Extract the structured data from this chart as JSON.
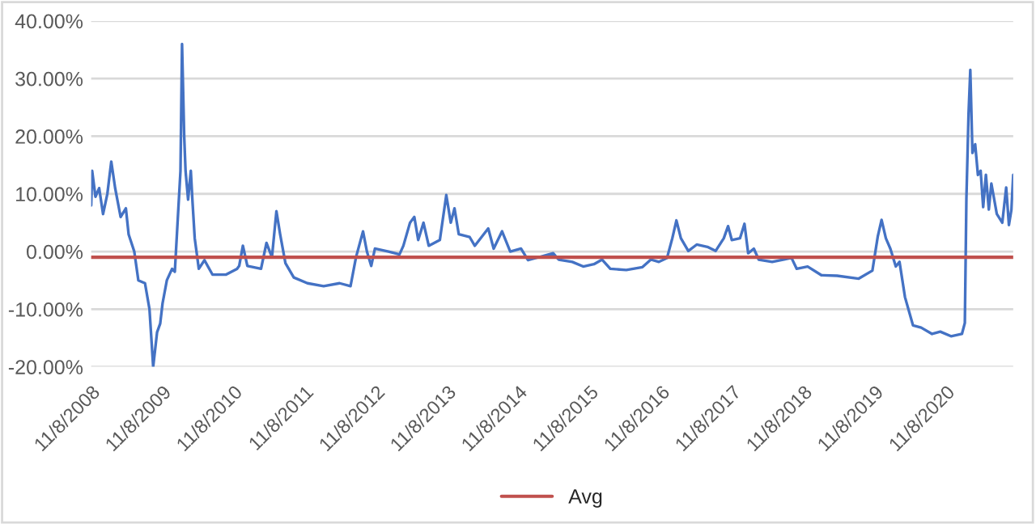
{
  "chart_data": {
    "type": "line",
    "x": [
      "2008-11-08",
      "2008-11-13",
      "2008-11-30",
      "2008-12-19",
      "2009-01-08",
      "2009-01-30",
      "2009-02-19",
      "2009-03-11",
      "2009-04-08",
      "2009-05-05",
      "2009-05-19",
      "2009-06-17",
      "2009-07-08",
      "2009-08-11",
      "2009-09-03",
      "2009-09-22",
      "2009-10-12",
      "2009-10-28",
      "2009-11-09",
      "2009-12-01",
      "2009-12-28",
      "2010-01-11",
      "2010-01-25",
      "2010-02-09",
      "2010-02-17",
      "2010-02-28",
      "2010-03-07",
      "2010-03-20",
      "2010-04-03",
      "2010-04-11",
      "2010-04-23",
      "2010-05-14",
      "2010-06-12",
      "2010-07-23",
      "2010-10-01",
      "2010-11-26",
      "2010-12-07",
      "2010-12-26",
      "2011-01-18",
      "2011-03-29",
      "2011-04-26",
      "2011-05-24",
      "2011-06-16",
      "2011-07-05",
      "2011-08-01",
      "2011-09-13",
      "2011-11-22",
      "2012-02-13",
      "2012-05-05",
      "2012-06-30",
      "2012-07-28",
      "2012-09-02",
      "2012-09-22",
      "2012-10-14",
      "2012-11-02",
      "2013-01-11",
      "2013-03-08",
      "2013-03-28",
      "2013-05-01",
      "2013-05-23",
      "2013-06-12",
      "2013-07-09",
      "2013-08-05",
      "2013-10-01",
      "2013-11-03",
      "2013-11-26",
      "2013-12-15",
      "2014-01-06",
      "2014-03-03",
      "2014-03-29",
      "2014-06-06",
      "2014-07-04",
      "2014-08-16",
      "2014-09-27",
      "2014-11-21",
      "2014-12-27",
      "2015-05-05",
      "2015-06-02",
      "2015-08-11",
      "2015-10-06",
      "2015-11-30",
      "2016-01-11",
      "2016-02-22",
      "2016-05-14",
      "2016-08-05",
      "2016-09-17",
      "2016-10-28",
      "2016-12-09",
      "2017-01-05",
      "2017-01-26",
      "2017-02-18",
      "2017-03-28",
      "2017-05-10",
      "2017-07-04",
      "2017-08-15",
      "2017-09-26",
      "2017-10-18",
      "2017-11-06",
      "2017-12-18",
      "2018-01-10",
      "2018-01-29",
      "2018-02-27",
      "2018-03-24",
      "2018-06-01",
      "2018-07-27",
      "2018-09-08",
      "2018-10-05",
      "2018-11-30",
      "2019-02-08",
      "2019-04-30",
      "2019-08-19",
      "2019-10-28",
      "2019-11-25",
      "2019-12-14",
      "2020-01-05",
      "2020-01-28",
      "2020-02-25",
      "2020-03-15",
      "2020-04-12",
      "2020-05-23",
      "2020-07-04",
      "2020-08-29",
      "2020-10-10",
      "2020-12-04",
      "2021-01-29",
      "2021-02-13",
      "2021-02-21",
      "2021-03-04",
      "2021-03-13",
      "2021-03-24",
      "2021-04-07",
      "2021-04-21",
      "2021-05-05",
      "2021-05-18",
      "2021-06-01",
      "2021-06-16",
      "2021-06-29",
      "2021-07-27",
      "2021-08-24",
      "2021-09-13",
      "2021-09-27",
      "2021-10-10",
      "2021-10-19"
    ],
    "series": [
      {
        "color": "#4472c4",
        "values": [
          8,
          14,
          9.5,
          11,
          6.5,
          10,
          15.6,
          11,
          6,
          7.5,
          3,
          0,
          -5,
          -5.5,
          -10,
          -20,
          -14,
          -12.5,
          -9,
          -5,
          -3,
          -3.5,
          5,
          14,
          36,
          20,
          14,
          9,
          14,
          9,
          2.3,
          -3,
          -1.5,
          -4,
          -4,
          -3,
          -2.5,
          1,
          -2.5,
          -3,
          1.5,
          -1,
          7,
          3,
          -2,
          -4.5,
          -5.5,
          -6,
          -5.5,
          -6,
          -1,
          3.5,
          0,
          -2.5,
          0.5,
          0,
          -0.5,
          1,
          5,
          6,
          2,
          5,
          1,
          2,
          9.8,
          5,
          7.5,
          3,
          2.5,
          1,
          4,
          0.5,
          3.5,
          0,
          0.5,
          -1.5,
          -0.3,
          -1.4,
          -1.8,
          -2.6,
          -2.2,
          -1.4,
          -3,
          -3.2,
          -2.7,
          -1.4,
          -1.8,
          -1.1,
          2.3,
          5.4,
          2.3,
          0.1,
          1.2,
          0.8,
          0.1,
          2.3,
          4.4,
          2,
          2.3,
          4.8,
          -0.3,
          0.5,
          -1.4,
          -1.8,
          -1.4,
          -1.1,
          -3,
          -2.6,
          -4.1,
          -4.2,
          -4.7,
          -3.3,
          2.7,
          5.5,
          2.3,
          0.5,
          -2.6,
          -1.8,
          -7.9,
          -12.8,
          -13.2,
          -14.3,
          -13.9,
          -14.7,
          -14.3,
          -12.4,
          9.2,
          23.9,
          31.5,
          17.1,
          18.6,
          13.3,
          14,
          7.7,
          13.3,
          7.3,
          11.8,
          6.5,
          5,
          11.1,
          4.6,
          7.3,
          13.3
        ]
      }
    ],
    "ref_lines": [
      {
        "axis": "y",
        "value": -1,
        "label": "Avg",
        "color": "#c0504d"
      }
    ],
    "xlim": [
      "2008-11-08",
      "2021-10-19"
    ],
    "xticks": [
      {
        "value": "2008-11-08",
        "label": "11/8/2008"
      },
      {
        "value": "2009-11-08",
        "label": "11/8/2009"
      },
      {
        "value": "2010-11-08",
        "label": "11/8/2010"
      },
      {
        "value": "2011-11-08",
        "label": "11/8/2011"
      },
      {
        "value": "2012-11-08",
        "label": "11/8/2012"
      },
      {
        "value": "2013-11-08",
        "label": "11/8/2013"
      },
      {
        "value": "2014-11-08",
        "label": "11/8/2014"
      },
      {
        "value": "2015-11-08",
        "label": "11/8/2015"
      },
      {
        "value": "2016-11-08",
        "label": "11/8/2016"
      },
      {
        "value": "2017-11-08",
        "label": "11/8/2017"
      },
      {
        "value": "2018-11-08",
        "label": "11/8/2018"
      },
      {
        "value": "2019-11-08",
        "label": "11/8/2019"
      },
      {
        "value": "2020-11-08",
        "label": "11/8/2020"
      }
    ],
    "ylim": [
      -20,
      40
    ],
    "yticks": [
      {
        "value": -20,
        "label": "-20.00%"
      },
      {
        "value": -10,
        "label": "-10.00%"
      },
      {
        "value": 0,
        "label": "0.00%"
      },
      {
        "value": 10,
        "label": "10.00%"
      },
      {
        "value": 20,
        "label": "20.00%"
      },
      {
        "value": 30,
        "label": "30.00%"
      },
      {
        "value": 40,
        "label": "40.00%"
      }
    ],
    "grid": "y",
    "legend": "bottom"
  }
}
